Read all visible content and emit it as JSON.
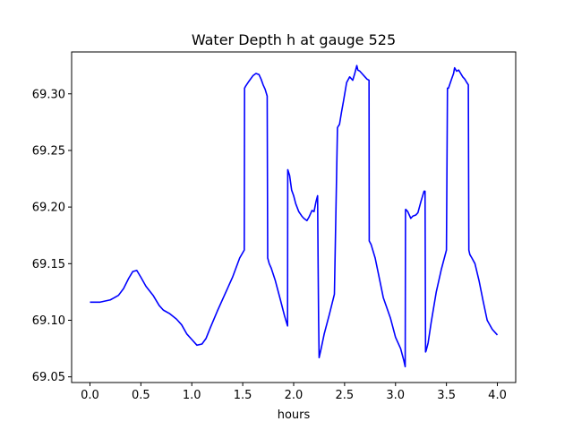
{
  "chart_data": {
    "type": "line",
    "title": "Water Depth h at gauge 525",
    "xlabel": "hours",
    "ylabel": "",
    "xlim": [
      -0.18,
      4.18
    ],
    "ylim": [
      69.045,
      69.337
    ],
    "xticks": [
      0.0,
      0.5,
      1.0,
      1.5,
      2.0,
      2.5,
      3.0,
      3.5,
      4.0
    ],
    "xtick_labels": [
      "0.0",
      "0.5",
      "1.0",
      "1.5",
      "2.0",
      "2.5",
      "3.0",
      "3.5",
      "4.0"
    ],
    "yticks": [
      69.05,
      69.1,
      69.15,
      69.2,
      69.25,
      69.3
    ],
    "ytick_labels": [
      "69.05",
      "69.10",
      "69.15",
      "69.20",
      "69.25",
      "69.30"
    ],
    "grid": false,
    "series": [
      {
        "color": "#0000ff",
        "x": [
          0.0,
          0.1,
          0.2,
          0.28,
          0.33,
          0.38,
          0.42,
          0.46,
          0.5,
          0.55,
          0.62,
          0.68,
          0.72,
          0.78,
          0.85,
          0.9,
          0.95,
          1.0,
          1.05,
          1.1,
          1.14,
          1.18,
          1.25,
          1.32,
          1.4,
          1.47,
          1.515,
          1.518,
          1.53,
          1.56,
          1.6,
          1.63,
          1.66,
          1.68,
          1.7,
          1.72,
          1.74,
          1.745,
          1.76,
          1.78,
          1.82,
          1.87,
          1.91,
          1.94,
          1.942,
          1.96,
          1.98,
          2.0,
          2.02,
          2.05,
          2.08,
          2.1,
          2.13,
          2.15,
          2.17,
          2.18,
          2.2,
          2.22,
          2.235,
          2.24,
          2.245,
          2.25,
          2.27,
          2.3,
          2.35,
          2.4,
          2.43,
          2.435,
          2.45,
          2.47,
          2.49,
          2.52,
          2.55,
          2.58,
          2.6,
          2.62,
          2.63,
          2.65,
          2.67,
          2.7,
          2.72,
          2.74,
          2.742,
          2.76,
          2.8,
          2.83,
          2.88,
          2.95,
          3.0,
          3.05,
          3.08,
          3.095,
          3.098,
          3.1,
          3.12,
          3.15,
          3.17,
          3.2,
          3.22,
          3.25,
          3.28,
          3.29,
          3.295,
          3.3,
          3.32,
          3.35,
          3.4,
          3.45,
          3.5,
          3.51,
          3.52,
          3.55,
          3.57,
          3.58,
          3.6,
          3.62,
          3.64,
          3.66,
          3.68,
          3.7,
          3.715,
          3.72,
          3.73,
          3.75,
          3.78,
          3.82,
          3.86,
          3.9,
          3.95,
          4.0
        ],
        "y": [
          69.116,
          69.116,
          69.118,
          69.122,
          69.128,
          69.137,
          69.143,
          69.144,
          69.138,
          69.13,
          69.122,
          69.113,
          69.109,
          69.106,
          69.101,
          69.096,
          69.088,
          69.083,
          69.078,
          69.079,
          69.084,
          69.093,
          69.108,
          69.122,
          69.138,
          69.155,
          69.162,
          69.305,
          69.307,
          69.311,
          69.316,
          69.318,
          69.317,
          69.313,
          69.308,
          69.304,
          69.298,
          69.155,
          69.15,
          69.146,
          69.135,
          69.118,
          69.104,
          69.095,
          69.233,
          69.228,
          69.215,
          69.21,
          69.203,
          69.196,
          69.192,
          69.19,
          69.188,
          69.191,
          69.195,
          69.197,
          69.196,
          69.205,
          69.21,
          69.15,
          69.1,
          69.067,
          69.075,
          69.088,
          69.105,
          69.123,
          69.27,
          69.271,
          69.273,
          69.284,
          69.294,
          69.31,
          69.315,
          69.312,
          69.318,
          69.325,
          69.321,
          69.32,
          69.318,
          69.315,
          69.313,
          69.312,
          69.17,
          69.167,
          69.155,
          69.142,
          69.12,
          69.102,
          69.085,
          69.075,
          69.065,
          69.059,
          69.197,
          69.198,
          69.196,
          69.19,
          69.192,
          69.193,
          69.195,
          69.205,
          69.214,
          69.214,
          69.072,
          69.073,
          69.08,
          69.098,
          69.125,
          69.145,
          69.162,
          69.305,
          69.305,
          69.313,
          69.318,
          69.323,
          69.32,
          69.321,
          69.318,
          69.315,
          69.313,
          69.31,
          69.308,
          69.162,
          69.158,
          69.155,
          69.15,
          69.135,
          69.117,
          69.1,
          69.092,
          69.087
        ]
      }
    ]
  }
}
